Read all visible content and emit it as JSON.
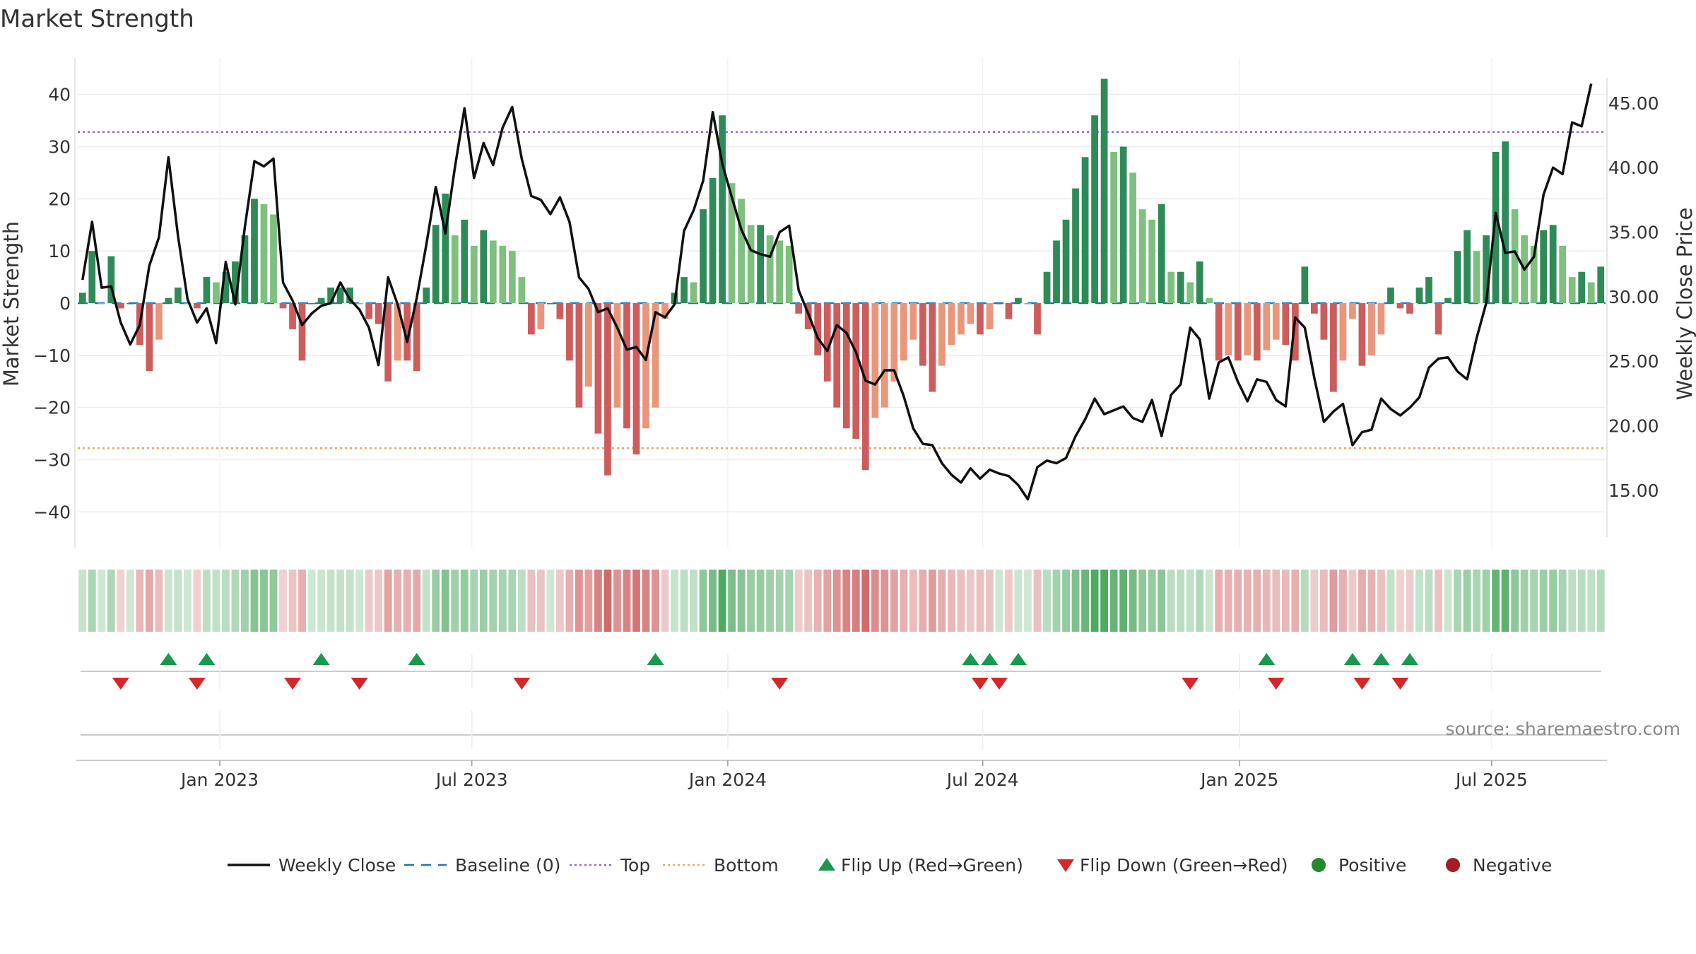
{
  "chart_data": {
    "type": "bar",
    "title": "Market Strength",
    "source": "source: sharemaestro.com",
    "ylabel_left": "Market Strength",
    "ylabel_right": "Weekly Close Price",
    "ylim_left": [
      -47,
      47
    ],
    "ylim_right": [
      10.5,
      48.5
    ],
    "yticks_left": [
      40,
      30,
      20,
      10,
      0,
      -10,
      -20,
      -30,
      -40
    ],
    "yticks_left_labels": [
      "40",
      "30",
      "20",
      "10",
      "0",
      "−10",
      "−20",
      "−30",
      "−40"
    ],
    "yticks_right": [
      45,
      40,
      35,
      30,
      25,
      20,
      15
    ],
    "yticks_right_labels": [
      "45.00",
      "40.00",
      "35.00",
      "30.00",
      "25.00",
      "20.00",
      "15.00"
    ],
    "top_line": 32.8,
    "bottom_line": -27.8,
    "week_range": [
      0,
      157
    ],
    "xticks": [
      {
        "label": "Jan 2023",
        "week": 14.6
      },
      {
        "label": "Jul 2023",
        "week": 40.5
      },
      {
        "label": "Jan 2024",
        "week": 66.8
      },
      {
        "label": "Jul 2024",
        "week": 93.0
      },
      {
        "label": "Jan 2025",
        "week": 119.4
      },
      {
        "label": "Jul 2025",
        "week": 145.3
      }
    ],
    "strength": [
      2,
      10,
      0,
      9,
      -1,
      0,
      -8,
      -13,
      -7,
      1,
      3,
      0,
      -1,
      5,
      4,
      6,
      8,
      13,
      20,
      19,
      17,
      -1,
      -5,
      -11,
      0,
      1,
      3,
      3,
      3,
      0,
      -3,
      -4,
      -15,
      -11,
      -11,
      -13,
      3,
      15,
      21,
      13,
      16,
      11,
      14,
      12,
      11,
      10,
      5,
      -6,
      -5,
      0,
      -3,
      -11,
      -20,
      -16,
      -25,
      -33,
      -20,
      -24,
      -29,
      -24,
      -20,
      -3,
      2,
      5,
      4,
      18,
      24,
      36,
      23,
      20,
      15,
      15,
      13,
      12,
      11,
      -2,
      -5,
      -10,
      -15,
      -20,
      -24,
      -26,
      -32,
      -22,
      -20,
      -15,
      -11,
      -7,
      -12,
      -17,
      -12,
      -8,
      -6,
      -4,
      -6,
      -5,
      0,
      -3,
      1,
      0,
      -6,
      6,
      12,
      16,
      22,
      28,
      36,
      43,
      29,
      30,
      25,
      18,
      16,
      19,
      6,
      6,
      4,
      8,
      1,
      -11,
      -10,
      -11,
      -10,
      -11,
      -9,
      -7,
      -8,
      -11,
      7,
      -2,
      -7,
      -17,
      -11,
      -3,
      -12,
      -10,
      -6,
      3,
      -1,
      -2,
      3,
      5,
      -6,
      1,
      10,
      14,
      10,
      13,
      29,
      31,
      18,
      13,
      11,
      14,
      15,
      11,
      5,
      6,
      4,
      7
    ],
    "flip_up_weeks": [
      9,
      13,
      25,
      35,
      60,
      93,
      95,
      98,
      124,
      133,
      136,
      139
    ],
    "flip_down_weeks": [
      4,
      12,
      22,
      29,
      46,
      73,
      94,
      96,
      116,
      125,
      134,
      138
    ],
    "series": [
      {
        "name": "Weekly Close",
        "color": "#111111",
        "values": [
          31.3,
          35.8,
          30.7,
          30.8,
          28,
          26.3,
          27.8,
          32.4,
          34.6,
          40.8,
          34.7,
          29.8,
          28,
          29.1,
          26.4,
          32.7,
          29.4,
          35.4,
          40.5,
          40.1,
          40.7,
          31.1,
          29.7,
          27.8,
          28.7,
          29.3,
          29.5,
          31.1,
          29.8,
          29,
          27.6,
          24.7,
          31.5,
          29.4,
          26.5,
          29.9,
          34,
          38.5,
          34.9,
          40,
          44.6,
          39.2,
          41.9,
          40.2,
          43.1,
          44.7,
          40.7,
          37.8,
          37.5,
          36.4,
          37.7,
          35.8,
          31.5,
          30.6,
          28.8,
          29.1,
          27.6,
          25.9,
          26.1,
          25.1,
          28.8,
          28.4,
          29.4,
          35.1,
          36.7,
          39,
          44.3,
          40.3,
          37.7,
          35.2,
          33.6,
          33.3,
          33.1,
          35,
          35.5,
          30.5,
          28.7,
          26.8,
          25.8,
          27.8,
          27.2,
          25.7,
          23.5,
          23.2,
          24.3,
          24.3,
          22.3,
          19.8,
          18.6,
          18.5,
          17.1,
          16.2,
          15.6,
          16.7,
          15.9,
          16.6,
          16.3,
          16.1,
          15.4,
          14.3,
          16.8,
          17.3,
          17.1,
          17.5,
          19.2,
          20.5,
          22.1,
          20.9,
          21.2,
          21.5,
          20.6,
          20.3,
          22,
          19.2,
          22.4,
          23.2,
          27.6,
          26.7,
          22.1,
          24.9,
          25.3,
          23.4,
          21.9,
          23.6,
          23.4,
          22,
          21.5,
          28.4,
          27.6,
          23.7,
          20.3,
          21.1,
          21.7,
          18.5,
          19.5,
          19.7,
          22.1,
          21.3,
          20.8,
          21.4,
          22.2,
          24.5,
          25.2,
          25.3,
          24.2,
          23.6,
          26.8,
          29.5,
          36.5,
          33.4,
          33.5,
          32.1,
          33.1,
          37.9,
          40,
          39.5,
          43.5,
          43.2,
          46.5
        ]
      },
      {
        "name": "Strength",
        "values": "see strength"
      }
    ],
    "legend": [
      {
        "label": "Weekly Close",
        "kind": "line",
        "color": "#111111"
      },
      {
        "label": "Baseline (0)",
        "kind": "dash",
        "color": "#1f77b4"
      },
      {
        "label": "Top",
        "kind": "dot",
        "color": "#9467bd"
      },
      {
        "label": "Bottom",
        "kind": "dot",
        "color": "#e8a85c"
      },
      {
        "label": "Flip Up (Red→Green)",
        "kind": "tri-up",
        "color": "#1a9850"
      },
      {
        "label": "Flip Down (Green→Red)",
        "kind": "tri-down",
        "color": "#d62728"
      },
      {
        "label": "Positive",
        "kind": "circle",
        "color": "#1f8b2c"
      },
      {
        "label": "Negative",
        "kind": "circle",
        "color": "#a31d25"
      }
    ]
  }
}
